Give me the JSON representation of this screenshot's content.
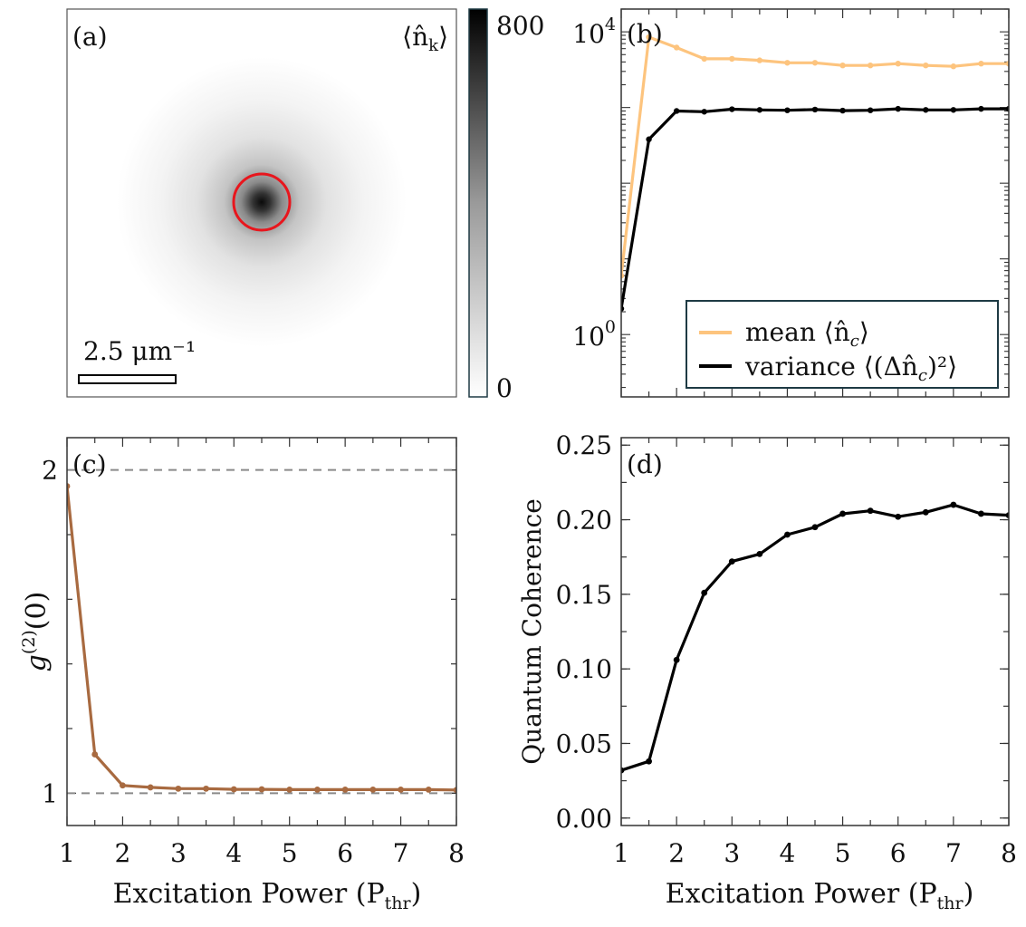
{
  "figure": {
    "xlabel": "Excitation Power (P",
    "xlabel_sub": "thr",
    "xlabel_close": ")",
    "x_ticks": [
      "1",
      "2",
      "3",
      "4",
      "5",
      "6",
      "7",
      "8"
    ]
  },
  "panel_a": {
    "label": "(a)",
    "quantity": "⟨n̂",
    "quantity_sub": "k",
    "quantity_close": "⟩",
    "scalebar_label": "2.5 μm⁻¹",
    "colorbar_max": "800",
    "colorbar_min": "0",
    "colors": {
      "ring": "#e8161d",
      "spot": "#111111"
    }
  },
  "chart_data": [
    {
      "id": "b",
      "type": "line",
      "label": "(b)",
      "yscale": "log",
      "ylim": [
        0.15,
        20000
      ],
      "xlim": [
        1,
        8
      ],
      "y_ticks": [
        {
          "value": 1,
          "label": "10",
          "exp": "0"
        },
        {
          "value": 10000,
          "label": "10",
          "exp": "4"
        }
      ],
      "x": [
        1,
        1.5,
        2,
        2.5,
        3,
        3.5,
        4,
        4.5,
        5,
        5.5,
        6,
        6.5,
        7,
        7.5,
        8
      ],
      "series": [
        {
          "name": "mean",
          "legend": "mean ⟨n̂",
          "legend_sub": "c",
          "legend_close": "⟩",
          "color": "#fdc47e",
          "values": [
            6,
            8500,
            6200,
            4400,
            4400,
            4200,
            3900,
            3900,
            3600,
            3600,
            3800,
            3600,
            3500,
            3800,
            3800
          ]
        },
        {
          "name": "variance",
          "legend": "variance ⟨(Δn̂",
          "legend_sub": "c",
          "legend_close": ")²⟩",
          "color": "#000000",
          "values": [
            2.2,
            380,
            900,
            880,
            950,
            930,
            920,
            940,
            910,
            920,
            960,
            930,
            930,
            960,
            960
          ]
        }
      ]
    },
    {
      "id": "c",
      "type": "line",
      "label": "(c)",
      "ylabel": "g",
      "ylabel_sup": "(2)",
      "ylabel_arg": "(0)",
      "ylim": [
        0.9,
        2.1
      ],
      "xlim": [
        1,
        8
      ],
      "y_ticks": [
        {
          "value": 1,
          "label": "1"
        },
        {
          "value": 2,
          "label": "2"
        }
      ],
      "reference_lines": [
        1,
        2
      ],
      "x": [
        1,
        1.5,
        2,
        2.5,
        3,
        3.5,
        4,
        4.5,
        5,
        5.5,
        6,
        6.5,
        7,
        7.5,
        8
      ],
      "series": [
        {
          "name": "g2",
          "color": "#a86a40",
          "values": [
            1.95,
            1.12,
            1.024,
            1.018,
            1.014,
            1.014,
            1.012,
            1.012,
            1.011,
            1.011,
            1.011,
            1.011,
            1.011,
            1.011,
            1.01
          ]
        }
      ]
    },
    {
      "id": "d",
      "type": "line",
      "label": "(d)",
      "ylabel": "Quantum Coherence",
      "ylim": [
        -0.005,
        0.255
      ],
      "xlim": [
        1,
        8
      ],
      "y_ticks": [
        {
          "value": 0.0,
          "label": "0.00"
        },
        {
          "value": 0.05,
          "label": "0.05"
        },
        {
          "value": 0.1,
          "label": "0.10"
        },
        {
          "value": 0.15,
          "label": "0.15"
        },
        {
          "value": 0.2,
          "label": "0.20"
        },
        {
          "value": 0.25,
          "label": "0.25"
        }
      ],
      "x": [
        1,
        1.5,
        2,
        2.5,
        3,
        3.5,
        4,
        4.5,
        5,
        5.5,
        6,
        6.5,
        7,
        7.5,
        8
      ],
      "series": [
        {
          "name": "coherence",
          "color": "#000000",
          "values": [
            0.032,
            0.038,
            0.106,
            0.151,
            0.172,
            0.177,
            0.19,
            0.195,
            0.204,
            0.206,
            0.202,
            0.205,
            0.21,
            0.204,
            0.203
          ]
        }
      ]
    }
  ]
}
